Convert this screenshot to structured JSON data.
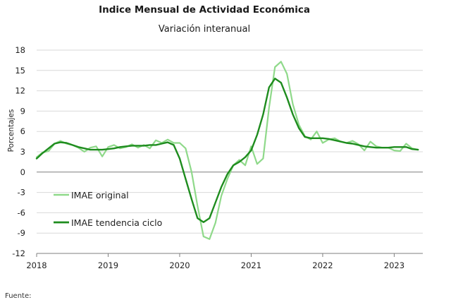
{
  "title": "Indice Mensual de  Actividad Económica",
  "subtitle": "Variación interanual",
  "source_label": "Fuente:",
  "colors": {
    "original": "#8fd98a",
    "trend": "#1e8c1e",
    "grid": "#d9d9d9",
    "axis": "#7f7f7f",
    "zero": "#7f7f7f"
  },
  "chart_data": {
    "type": "line",
    "title": "Indice Mensual de  Actividad Económica",
    "subtitle": "Variación interanual",
    "xlabel": "",
    "ylabel": "Porcentajes",
    "ylim": [
      -12,
      18
    ],
    "yticks": [
      18,
      15,
      12,
      9,
      6,
      3,
      0,
      -3,
      -6,
      -9,
      -12
    ],
    "xlim": [
      2018,
      2023.4
    ],
    "xticks": [
      2018,
      2019,
      2020,
      2021,
      2022,
      2023
    ],
    "grid": true,
    "legend_position": "bottom-left",
    "series": [
      {
        "name": "IMAE original",
        "x": [
          2018.0,
          2018.083,
          2018.167,
          2018.25,
          2018.333,
          2018.417,
          2018.5,
          2018.583,
          2018.667,
          2018.75,
          2018.833,
          2018.917,
          2019.0,
          2019.083,
          2019.167,
          2019.25,
          2019.333,
          2019.417,
          2019.5,
          2019.583,
          2019.667,
          2019.75,
          2019.833,
          2019.917,
          2020.0,
          2020.083,
          2020.167,
          2020.25,
          2020.333,
          2020.417,
          2020.5,
          2020.583,
          2020.667,
          2020.75,
          2020.833,
          2020.917,
          2021.0,
          2021.083,
          2021.167,
          2021.25,
          2021.333,
          2021.417,
          2021.5,
          2021.583,
          2021.667,
          2021.75,
          2021.833,
          2021.917,
          2022.0,
          2022.083,
          2022.167,
          2022.25,
          2022.333,
          2022.417,
          2022.5,
          2022.583,
          2022.667,
          2022.75,
          2022.833,
          2022.917,
          2023.0,
          2023.083,
          2023.167,
          2023.25,
          2023.333
        ],
        "values": [
          2.2,
          2.9,
          3.1,
          4.2,
          4.6,
          4.2,
          4.0,
          3.6,
          3.0,
          3.6,
          3.8,
          2.3,
          3.7,
          4.0,
          3.5,
          3.7,
          4.1,
          3.6,
          4.0,
          3.5,
          4.7,
          4.3,
          4.8,
          4.3,
          4.3,
          3.5,
          0.0,
          -5.0,
          -9.5,
          -9.9,
          -7.5,
          -3.5,
          -1.0,
          1.0,
          1.8,
          1.0,
          3.8,
          1.2,
          2.0,
          9.5,
          15.5,
          16.3,
          14.5,
          10.0,
          7.0,
          5.3,
          4.8,
          6.0,
          4.3,
          4.8,
          5.0,
          4.5,
          4.3,
          4.6,
          4.1,
          3.2,
          4.5,
          3.8,
          3.6,
          3.6,
          3.2,
          3.1,
          4.2,
          3.5,
          3.3
        ]
      },
      {
        "name": "IMAE tendencia ciclo",
        "x": [
          2018.0,
          2018.083,
          2018.167,
          2018.25,
          2018.333,
          2018.417,
          2018.5,
          2018.583,
          2018.667,
          2018.75,
          2018.833,
          2018.917,
          2019.0,
          2019.083,
          2019.167,
          2019.25,
          2019.333,
          2019.417,
          2019.5,
          2019.583,
          2019.667,
          2019.75,
          2019.833,
          2019.917,
          2020.0,
          2020.083,
          2020.167,
          2020.25,
          2020.333,
          2020.417,
          2020.5,
          2020.583,
          2020.667,
          2020.75,
          2020.833,
          2020.917,
          2021.0,
          2021.083,
          2021.167,
          2021.25,
          2021.333,
          2021.417,
          2021.5,
          2021.583,
          2021.667,
          2021.75,
          2021.833,
          2021.917,
          2022.0,
          2022.083,
          2022.167,
          2022.25,
          2022.333,
          2022.417,
          2022.5,
          2022.583,
          2022.667,
          2022.75,
          2022.833,
          2022.917,
          2023.0,
          2023.083,
          2023.167,
          2023.25,
          2023.333
        ],
        "values": [
          2.0,
          2.8,
          3.5,
          4.2,
          4.4,
          4.3,
          4.0,
          3.7,
          3.5,
          3.3,
          3.3,
          3.3,
          3.4,
          3.5,
          3.7,
          3.8,
          3.9,
          3.9,
          3.9,
          4.0,
          4.0,
          4.2,
          4.4,
          4.0,
          2.0,
          -1.0,
          -4.0,
          -6.8,
          -7.4,
          -6.8,
          -4.5,
          -2.2,
          -0.3,
          1.0,
          1.5,
          2.2,
          3.2,
          5.5,
          8.5,
          12.5,
          13.8,
          13.2,
          11.0,
          8.5,
          6.5,
          5.2,
          5.0,
          5.0,
          5.0,
          4.9,
          4.7,
          4.5,
          4.3,
          4.2,
          4.0,
          3.8,
          3.7,
          3.6,
          3.6,
          3.6,
          3.7,
          3.7,
          3.7,
          3.4,
          3.3
        ]
      }
    ]
  }
}
